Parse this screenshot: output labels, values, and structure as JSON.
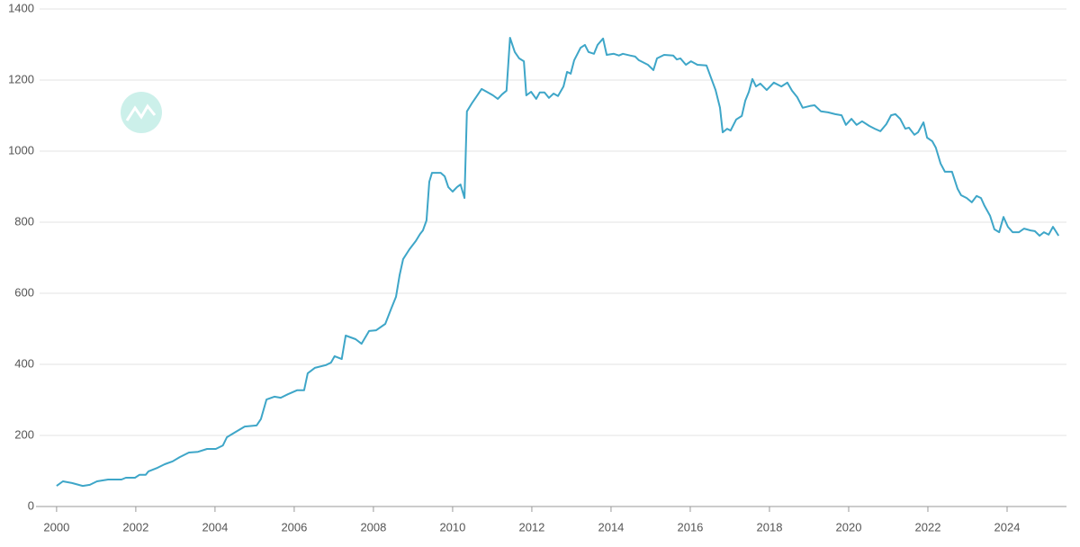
{
  "chart_data": {
    "type": "line",
    "x": [
      2000.0,
      2000.16,
      2000.39,
      2000.66,
      2000.84,
      2001.02,
      2001.3,
      2001.64,
      2001.75,
      2001.98,
      2002.09,
      2002.25,
      2002.32,
      2002.55,
      2002.73,
      2002.93,
      2003.11,
      2003.34,
      2003.57,
      2003.8,
      2004.02,
      2004.2,
      2004.3,
      2004.52,
      2004.75,
      2005.05,
      2005.16,
      2005.3,
      2005.5,
      2005.66,
      2005.84,
      2006.07,
      2006.25,
      2006.34,
      2006.52,
      2006.8,
      2006.93,
      2007.02,
      2007.2,
      2007.3,
      2007.55,
      2007.7,
      2007.89,
      2008.07,
      2008.3,
      2008.45,
      2008.57,
      2008.66,
      2008.75,
      2008.91,
      2009.07,
      2009.18,
      2009.25,
      2009.34,
      2009.41,
      2009.48,
      2009.7,
      2009.8,
      2009.89,
      2010.0,
      2010.11,
      2010.2,
      2010.3,
      2010.36,
      2010.5,
      2010.61,
      2010.73,
      2010.89,
      2011.02,
      2011.14,
      2011.25,
      2011.36,
      2011.45,
      2011.57,
      2011.68,
      2011.8,
      2011.86,
      2011.98,
      2012.11,
      2012.2,
      2012.32,
      2012.43,
      2012.55,
      2012.66,
      2012.8,
      2012.89,
      2012.98,
      2013.07,
      2013.23,
      2013.34,
      2013.43,
      2013.57,
      2013.66,
      2013.8,
      2013.89,
      2014.07,
      2014.2,
      2014.3,
      2014.48,
      2014.61,
      2014.7,
      2014.93,
      2015.07,
      2015.16,
      2015.34,
      2015.57,
      2015.66,
      2015.75,
      2015.89,
      2016.02,
      2016.18,
      2016.41,
      2016.52,
      2016.64,
      2016.75,
      2016.82,
      2016.93,
      2017.02,
      2017.16,
      2017.3,
      2017.39,
      2017.48,
      2017.57,
      2017.66,
      2017.77,
      2017.93,
      2018.11,
      2018.3,
      2018.45,
      2018.57,
      2018.7,
      2018.84,
      2019.02,
      2019.14,
      2019.3,
      2019.48,
      2019.66,
      2019.82,
      2019.93,
      2020.07,
      2020.2,
      2020.34,
      2020.52,
      2020.66,
      2020.8,
      2020.95,
      2021.07,
      2021.18,
      2021.3,
      2021.43,
      2021.52,
      2021.66,
      2021.75,
      2021.89,
      2021.98,
      2022.11,
      2022.2,
      2022.32,
      2022.43,
      2022.61,
      2022.75,
      2022.84,
      2022.98,
      2023.11,
      2023.23,
      2023.34,
      2023.43,
      2023.57,
      2023.68,
      2023.8,
      2023.91,
      2024.02,
      2024.14,
      2024.3,
      2024.43,
      2024.59,
      2024.7,
      2024.82,
      2024.93,
      2025.05,
      2025.16,
      2025.3
    ],
    "series": [
      {
        "color": "#3ea6c8",
        "values": [
          58,
          71,
          66,
          58,
          61,
          71,
          76,
          76,
          81,
          81,
          89,
          89,
          99,
          109,
          119,
          127,
          139,
          152,
          154,
          162,
          162,
          172,
          195,
          210,
          225,
          228,
          246,
          301,
          309,
          306,
          316,
          327,
          327,
          375,
          390,
          398,
          405,
          423,
          415,
          481,
          471,
          458,
          494,
          496,
          514,
          557,
          590,
          651,
          696,
          724,
          747,
          767,
          777,
          805,
          914,
          939,
          939,
          929,
          899,
          886,
          899,
          906,
          868,
          1112,
          1137,
          1155,
          1175,
          1165,
          1157,
          1147,
          1160,
          1170,
          1319,
          1279,
          1261,
          1253,
          1157,
          1167,
          1147,
          1165,
          1165,
          1150,
          1162,
          1155,
          1182,
          1223,
          1218,
          1256,
          1291,
          1299,
          1279,
          1274,
          1299,
          1317,
          1271,
          1274,
          1269,
          1274,
          1269,
          1266,
          1256,
          1243,
          1228,
          1261,
          1271,
          1269,
          1258,
          1261,
          1243,
          1253,
          1243,
          1241,
          1208,
          1172,
          1122,
          1053,
          1063,
          1058,
          1089,
          1099,
          1142,
          1167,
          1203,
          1182,
          1190,
          1172,
          1193,
          1182,
          1193,
          1170,
          1152,
          1122,
          1127,
          1129,
          1112,
          1109,
          1104,
          1101,
          1074,
          1091,
          1074,
          1084,
          1071,
          1063,
          1056,
          1076,
          1101,
          1104,
          1091,
          1063,
          1066,
          1046,
          1053,
          1081,
          1038,
          1028,
          1010,
          965,
          942,
          942,
          894,
          876,
          868,
          856,
          874,
          868,
          846,
          818,
          780,
          772,
          815,
          787,
          772,
          772,
          782,
          777,
          775,
          762,
          772,
          765,
          787,
          762
        ]
      }
    ],
    "xlim": [
      1999.48,
      2025.5
    ],
    "xticks": [
      2000,
      2002,
      2004,
      2006,
      2008,
      2010,
      2012,
      2014,
      2016,
      2018,
      2020,
      2022,
      2024
    ],
    "ylim": [
      0,
      1400
    ],
    "yticks": [
      0,
      200,
      400,
      600,
      800,
      1000,
      1200,
      1400
    ],
    "grid": true
  }
}
